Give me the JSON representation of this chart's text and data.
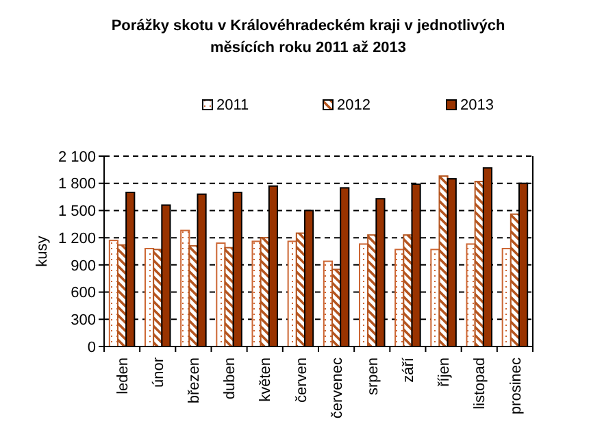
{
  "chart_data": {
    "type": "bar",
    "title": "Porážky skotu v Královéhradeckém kraji v jednotlivých měsících roku 2011 až 2013",
    "ylabel": "kusy",
    "categories": [
      "leden",
      "únor",
      "březen",
      "duben",
      "květen",
      "červen",
      "červenec",
      "srpen",
      "září",
      "říjen",
      "listopad",
      "prosinec"
    ],
    "series": [
      {
        "name": "2011",
        "color": "#cc6633",
        "values": [
          1170,
          1080,
          1280,
          1140,
          1160,
          1160,
          940,
          1130,
          1070,
          1070,
          1130,
          1080
        ]
      },
      {
        "name": "2012",
        "color": "#b5551f",
        "values": [
          1120,
          1070,
          1110,
          1090,
          1200,
          1250,
          850,
          1230,
          1230,
          1880,
          1820,
          1460
        ]
      },
      {
        "name": "2013",
        "color": "#993300",
        "values": [
          1700,
          1560,
          1680,
          1700,
          1770,
          1500,
          1750,
          1630,
          1790,
          1850,
          1970,
          1800
        ]
      }
    ],
    "ylim": [
      0,
      2100
    ],
    "yticks": [
      0,
      {
        "value": 300,
        "label": "300"
      },
      {
        "value": 600,
        "label": "600"
      },
      {
        "value": 900,
        "label": "900"
      },
      {
        "value": 1200,
        "label": "1 200"
      },
      {
        "value": 1500,
        "label": "1 500"
      },
      {
        "value": 1800,
        "label": "1 800"
      },
      {
        "value": 2100,
        "label": "2 100"
      }
    ],
    "grid": "y",
    "legend": "top"
  }
}
